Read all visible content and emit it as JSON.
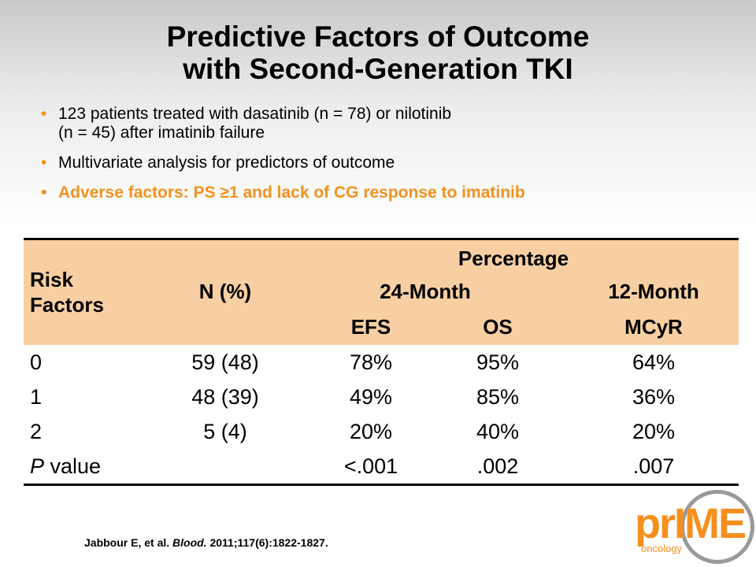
{
  "title": {
    "line1": "Predictive Factors of Outcome",
    "line2": "with Second-Generation TKI"
  },
  "bullets": [
    {
      "line1": "123 patients treated with dasatinib (n = 78) or nilotinib",
      "line2": "(n = 45) after imatinib failure"
    },
    {
      "line1": "Multivariate analysis for predictors of outcome"
    },
    {
      "line1": "Adverse factors: PS ≥1 and lack of CG response to imatinib"
    }
  ],
  "bullet_symbol": "•",
  "table": {
    "header": {
      "risk_line1": "Risk",
      "risk_line2": "Factors",
      "n": "N (%)",
      "percentage": "Percentage",
      "month24": "24-Month",
      "month12": "12-Month",
      "efs": "EFS",
      "os": "OS",
      "mcyr": "MCyR"
    },
    "rows": [
      {
        "risk": "0",
        "n": "59 (48)",
        "efs": "78%",
        "os": "95%",
        "mcyr": "64%"
      },
      {
        "risk": "1",
        "n": "48 (39)",
        "efs": "49%",
        "os": "85%",
        "mcyr": "36%"
      },
      {
        "risk": "2",
        "n": "5 (4)",
        "efs": "20%",
        "os": "40%",
        "mcyr": "20%"
      },
      {
        "risk_italic": "P",
        "risk": " value",
        "n": "",
        "efs": "<.001",
        "os": ".002",
        "mcyr": ".007"
      }
    ]
  },
  "citation": {
    "authors": "Jabbour E, et al. ",
    "journal": "Blood.",
    "ref": " 2011;117(6):1822-1827."
  },
  "logo": {
    "text": "prIME",
    "sub": "oncology"
  },
  "colors": {
    "accent": "#f5901e",
    "table_header": "#f8cfa2"
  }
}
